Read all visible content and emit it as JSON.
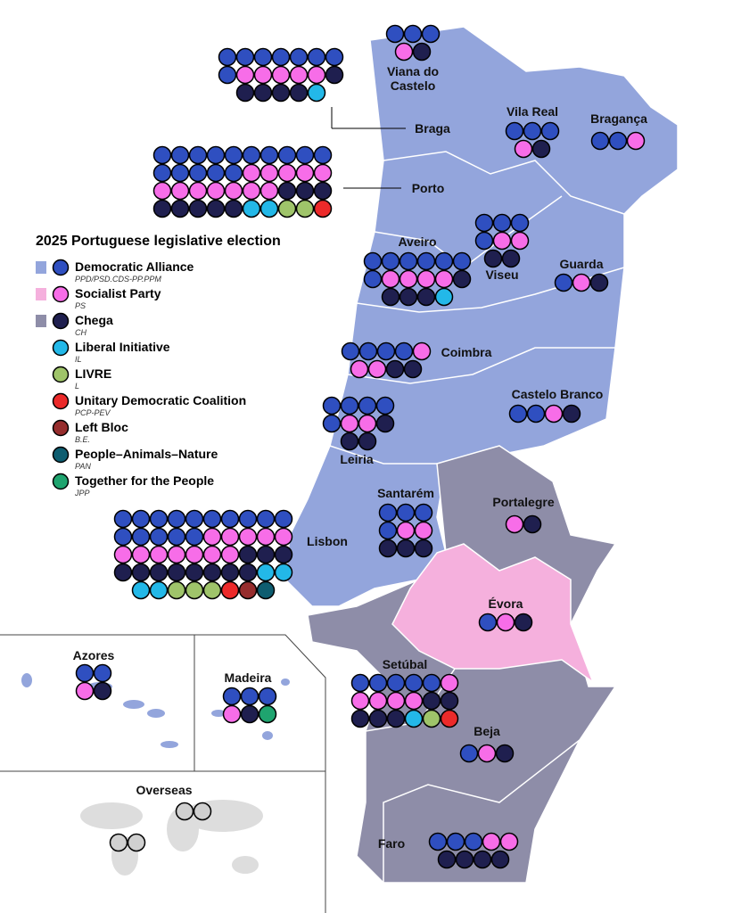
{
  "title": "2025 Portuguese legislative election",
  "parties": [
    {
      "name": "Democratic Alliance",
      "abbr": "PPD/PSD.CDS-PP.PPM",
      "color": "#2f4fc0",
      "map_color": "#93a5dc"
    },
    {
      "name": "Socialist Party",
      "abbr": "PS",
      "color": "#f76de8",
      "map_color": "#f5b0dd"
    },
    {
      "name": "Chega",
      "abbr": "CH",
      "color": "#1f1f4f",
      "map_color": "#8e8da8"
    },
    {
      "name": "Liberal Initiative",
      "abbr": "IL",
      "color": "#23b8e8"
    },
    {
      "name": "LIVRE",
      "abbr": "L",
      "color": "#9fc46a"
    },
    {
      "name": "Unitary Democratic Coalition",
      "abbr": "PCP-PEV",
      "color": "#ec2a2a"
    },
    {
      "name": "Left Bloc",
      "abbr": "B.E.",
      "color": "#962d2d"
    },
    {
      "name": "People–Animals–Nature",
      "abbr": "PAN",
      "color": "#0e5d70"
    },
    {
      "name": "Together for the People",
      "abbr": "JPP",
      "color": "#1fa46f"
    }
  ],
  "districts": [
    {
      "label": "Viana do Castelo",
      "seats": [
        3,
        1,
        1,
        0,
        0,
        0,
        0,
        0,
        0
      ]
    },
    {
      "label": "Braga",
      "seats": [
        8,
        5,
        5,
        1,
        0,
        0,
        0,
        0,
        0
      ]
    },
    {
      "label": "Porto",
      "seats": [
        15,
        12,
        8,
        2,
        2,
        1,
        0,
        0,
        0
      ]
    },
    {
      "label": "Vila Real",
      "seats": [
        3,
        1,
        1,
        0,
        0,
        0,
        0,
        0,
        0
      ]
    },
    {
      "label": "Bragança",
      "seats": [
        2,
        1,
        0,
        0,
        0,
        0,
        0,
        0,
        0
      ]
    },
    {
      "label": "Aveiro",
      "seats": [
        7,
        4,
        4,
        1,
        0,
        0,
        0,
        0,
        0
      ]
    },
    {
      "label": "Viseu",
      "seats": [
        4,
        2,
        2,
        0,
        0,
        0,
        0,
        0,
        0
      ]
    },
    {
      "label": "Guarda",
      "seats": [
        1,
        1,
        1,
        0,
        0,
        0,
        0,
        0,
        0
      ]
    },
    {
      "label": "Coimbra",
      "seats": [
        4,
        3,
        2,
        0,
        0,
        0,
        0,
        0,
        0
      ]
    },
    {
      "label": "Castelo Branco",
      "seats": [
        2,
        1,
        1,
        0,
        0,
        0,
        0,
        0,
        0
      ]
    },
    {
      "label": "Leiria",
      "seats": [
        5,
        2,
        3,
        0,
        0,
        0,
        0,
        0,
        0
      ]
    },
    {
      "label": "Santarém",
      "seats": [
        4,
        2,
        3,
        0,
        0,
        0,
        0,
        0,
        0
      ]
    },
    {
      "label": "Portalegre",
      "seats": [
        0,
        1,
        1,
        0,
        0,
        0,
        0,
        0,
        0
      ]
    },
    {
      "label": "Lisbon",
      "seats": [
        15,
        12,
        11,
        4,
        3,
        1,
        1,
        1,
        0
      ]
    },
    {
      "label": "Évora",
      "seats": [
        1,
        1,
        1,
        0,
        0,
        0,
        0,
        0,
        0
      ]
    },
    {
      "label": "Setúbal",
      "seats": [
        5,
        5,
        5,
        1,
        1,
        1,
        0,
        0,
        0
      ]
    },
    {
      "label": "Beja",
      "seats": [
        1,
        1,
        1,
        0,
        0,
        0,
        0,
        0,
        0
      ]
    },
    {
      "label": "Faro",
      "seats": [
        3,
        2,
        4,
        0,
        0,
        0,
        0,
        0,
        0
      ]
    },
    {
      "label": "Azores",
      "seats": [
        2,
        1,
        1,
        0,
        0,
        0,
        0,
        0,
        0
      ]
    },
    {
      "label": "Madeira",
      "seats": [
        3,
        1,
        1,
        0,
        0,
        0,
        0,
        0,
        1
      ]
    }
  ],
  "overseas": {
    "label": "Overseas",
    "seats": 4,
    "color": "#d0d0d0"
  }
}
